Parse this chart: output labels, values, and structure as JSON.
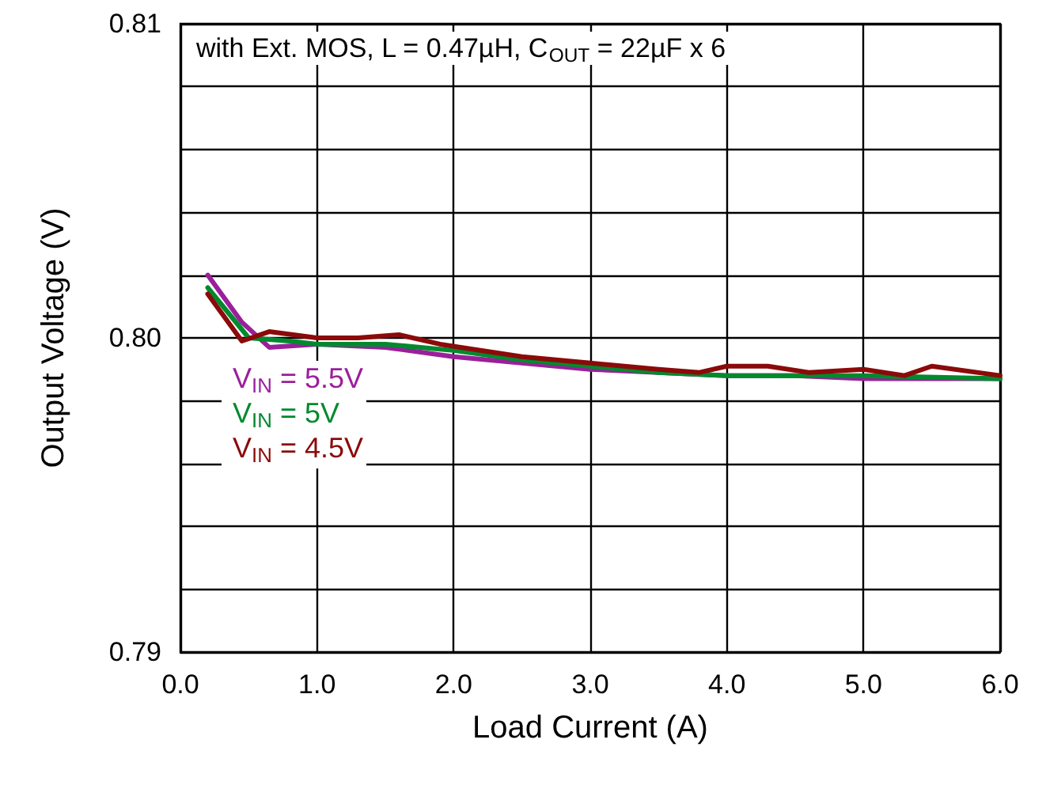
{
  "chart_data": {
    "type": "line",
    "xlabel": "Load Current (A)",
    "ylabel": "Output Voltage (V)",
    "annotations": [
      "with Ext. MOS, L = 0.47µH, C$_{OUT}$ = 22µF x 6"
    ],
    "xlim": [
      0,
      6
    ],
    "xticks": [
      {
        "value": 0,
        "label": "0.0"
      },
      {
        "value": 1,
        "label": "1.0"
      },
      {
        "value": 2,
        "label": "2.0"
      },
      {
        "value": 3,
        "label": "3.0"
      },
      {
        "value": 4,
        "label": "4.0"
      },
      {
        "value": 5,
        "label": "5.0"
      },
      {
        "value": 6,
        "label": "6.0"
      }
    ],
    "ylim": [
      0.79,
      0.81
    ],
    "yticks": [
      0.79,
      {
        "value": 0.792,
        "label": null
      },
      {
        "value": 0.794,
        "label": null
      },
      {
        "value": 0.796,
        "label": null
      },
      {
        "value": 0.798,
        "label": null
      },
      {
        "value": 0.8,
        "label": "0.80"
      },
      {
        "value": 0.802,
        "label": null
      },
      {
        "value": 0.804,
        "label": null
      },
      {
        "value": 0.806,
        "label": null
      },
      {
        "value": 0.808,
        "label": null
      },
      0.81
    ],
    "grid": true,
    "legend": "left",
    "marker": "none",
    "line_style": "solid",
    "series": [
      {
        "name": "V$_{IN}$ = 5.5V",
        "color": "#9b1f9b",
        "x": [
          0.2,
          0.45,
          0.65,
          1.0,
          1.5,
          2.0,
          2.5,
          3.0,
          3.5,
          4.0,
          4.5,
          5.0,
          5.5,
          6.0
        ],
        "values": [
          0.802,
          0.8005,
          0.7997,
          0.7998,
          0.7997,
          0.7994,
          0.7992,
          0.799,
          0.7989,
          0.7988,
          0.7988,
          0.7987,
          0.7987,
          0.7987
        ]
      },
      {
        "name": "V$_{IN}$ = 5V",
        "color": "#008a2e",
        "x": [
          0.2,
          0.5,
          0.8,
          1.0,
          1.5,
          2.0,
          2.5,
          3.0,
          3.5,
          4.0,
          5.0,
          6.0
        ],
        "values": [
          0.8016,
          0.8,
          0.7999,
          0.7998,
          0.7998,
          0.7996,
          0.7993,
          0.7991,
          0.7989,
          0.7988,
          0.7988,
          0.7987
        ]
      },
      {
        "name": "V$_{IN}$ = 4.5V",
        "color": "#8b0a0a",
        "x": [
          0.2,
          0.45,
          0.65,
          1.0,
          1.3,
          1.6,
          1.9,
          2.5,
          3.0,
          3.5,
          3.8,
          4.0,
          4.3,
          4.6,
          5.0,
          5.3,
          5.5,
          6.0
        ],
        "values": [
          0.8014,
          0.7999,
          0.8002,
          0.8,
          0.8,
          0.8001,
          0.7998,
          0.7994,
          0.7992,
          0.799,
          0.7989,
          0.7991,
          0.7991,
          0.7989,
          0.799,
          0.7988,
          0.7991,
          0.7988
        ]
      }
    ]
  }
}
